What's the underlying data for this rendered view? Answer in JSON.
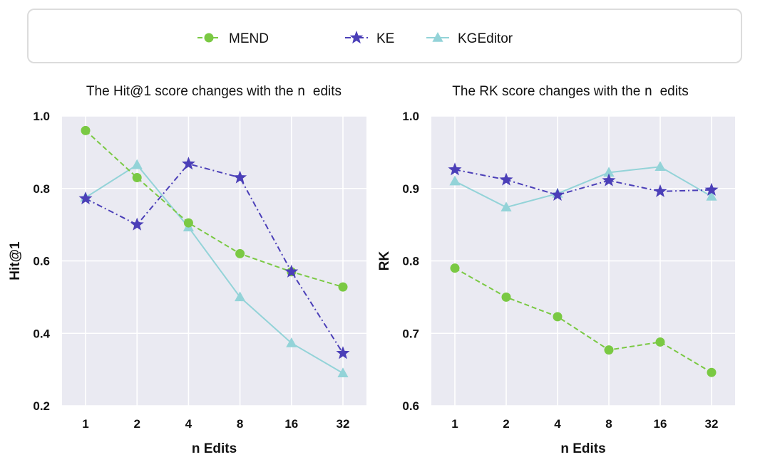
{
  "legend": [
    {
      "name": "MEND",
      "color": "#7ac943",
      "marker": "circle",
      "dash": "dashed"
    },
    {
      "name": "KE",
      "color": "#4b3fb8",
      "marker": "star",
      "dash": "dashdot"
    },
    {
      "name": "KGEditor",
      "color": "#93d3d8",
      "marker": "triangle",
      "dash": "solid"
    }
  ],
  "chart_data": [
    {
      "type": "line",
      "title_prefix": "The Hit@1 score changes with the",
      "title_code": "n",
      "title_suffix": "edits",
      "xlabel": "n Edits",
      "ylabel": "Hit@1",
      "categories": [
        "1",
        "2",
        "4",
        "8",
        "16",
        "32"
      ],
      "ylim": [
        0.2,
        1.0
      ],
      "yticks": [
        "0.2",
        "0.4",
        "0.6",
        "0.8",
        "1.0"
      ],
      "grid": true,
      "series": [
        {
          "name": "MEND",
          "values": [
            0.96,
            0.83,
            0.705,
            0.62,
            0.57,
            0.528
          ]
        },
        {
          "name": "KE",
          "values": [
            0.772,
            0.7,
            0.868,
            0.83,
            0.57,
            0.345
          ]
        },
        {
          "name": "KGEditor",
          "values": [
            0.775,
            0.865,
            0.693,
            0.5,
            0.373,
            0.29
          ]
        }
      ]
    },
    {
      "type": "line",
      "title_prefix": "The RK score changes with the",
      "title_code": "n",
      "title_suffix": "edits",
      "xlabel": "n Edits",
      "ylabel": "RK",
      "categories": [
        "1",
        "2",
        "4",
        "8",
        "16",
        "32"
      ],
      "ylim": [
        0.6,
        1.0
      ],
      "yticks": [
        "0.6",
        "0.7",
        "0.8",
        "0.9",
        "1.0"
      ],
      "grid": true,
      "series": [
        {
          "name": "MEND",
          "values": [
            0.79,
            0.75,
            0.723,
            0.677,
            0.688,
            0.646
          ]
        },
        {
          "name": "KE",
          "values": [
            0.926,
            0.912,
            0.891,
            0.911,
            0.896,
            0.898
          ]
        },
        {
          "name": "KGEditor",
          "values": [
            0.91,
            0.874,
            0.893,
            0.922,
            0.93,
            0.889
          ]
        }
      ]
    }
  ]
}
